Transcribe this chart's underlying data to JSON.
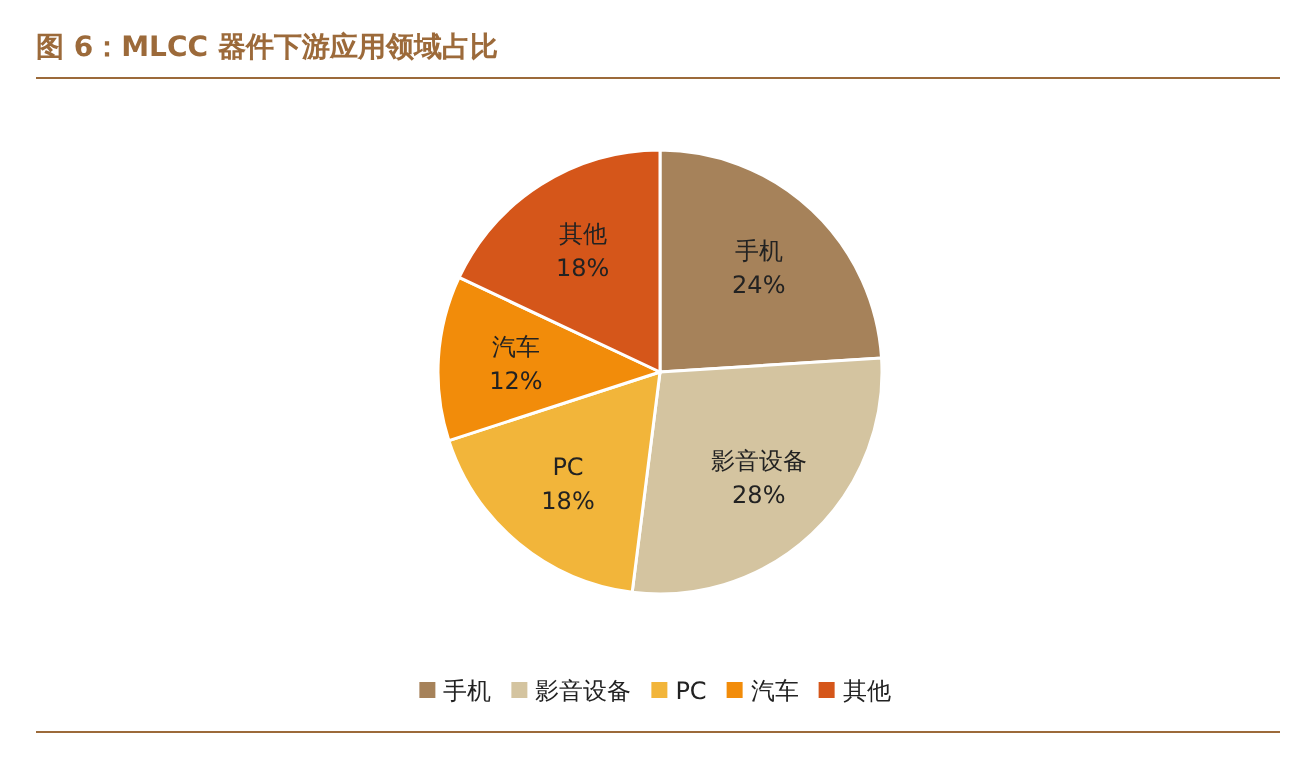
{
  "chart_data": {
    "type": "pie",
    "title": "图 6：MLCC 器件下游应用领域占比",
    "categories": [
      "手机",
      "影音设备",
      "PC",
      "汽车",
      "其他"
    ],
    "values": [
      24,
      28,
      18,
      12,
      18
    ],
    "colors": [
      "#a6825a",
      "#d4c4a0",
      "#f2b53a",
      "#f28c0a",
      "#d5561a"
    ],
    "value_labels": [
      "24%",
      "28%",
      "18%",
      "12%",
      "18%"
    ],
    "legend": "bottom"
  }
}
